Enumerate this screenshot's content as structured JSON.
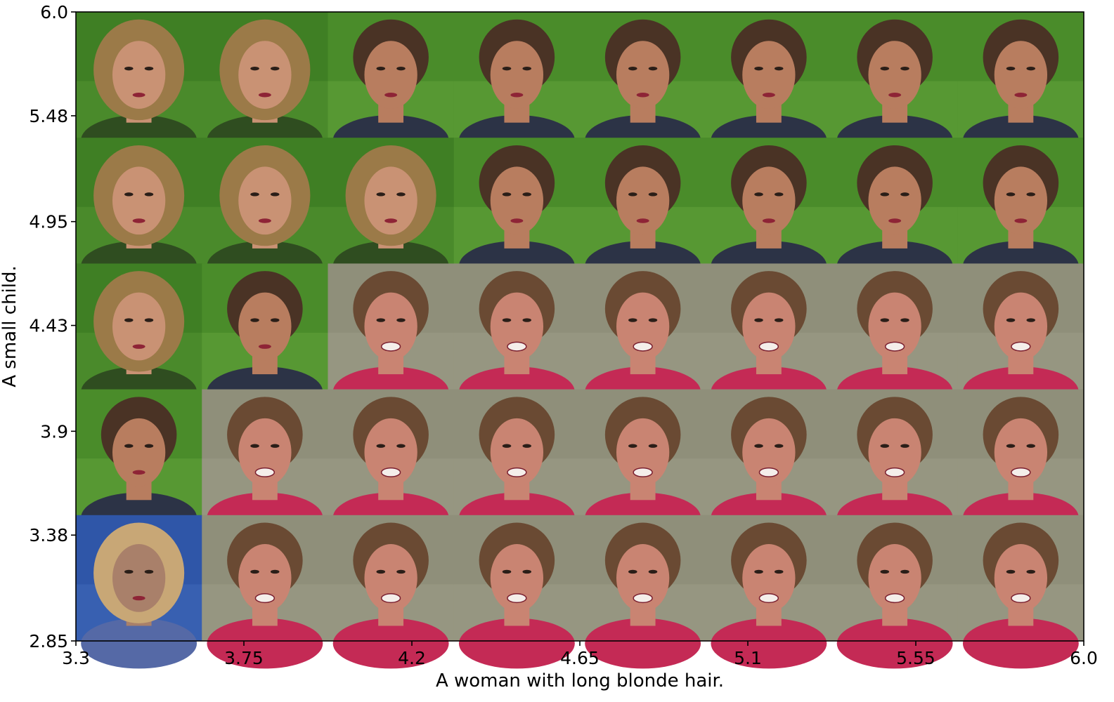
{
  "chart_data": {
    "type": "heatmap",
    "title": "",
    "xlabel": "A woman with long blonde hair.",
    "ylabel": "A small child.",
    "x_ticks": [
      "3.3",
      "3.75",
      "4.2",
      "4.65",
      "5.1",
      "5.55",
      "6.0"
    ],
    "y_ticks": [
      "6.0",
      "5.48",
      "4.95",
      "4.43",
      "3.9",
      "3.38",
      "2.85"
    ],
    "xlim": [
      3.3,
      6.0
    ],
    "ylim": [
      2.85,
      6.0
    ],
    "grid": false,
    "legend": "none",
    "columns": 8,
    "rows": 5,
    "cells": [
      [
        "woman-blonde",
        "woman-blonde",
        "woman",
        "woman",
        "woman",
        "woman",
        "woman",
        "woman"
      ],
      [
        "woman-blonde",
        "woman-blonde",
        "woman-blonde",
        "woman",
        "woman",
        "woman",
        "woman",
        "woman"
      ],
      [
        "woman-blonde",
        "woman",
        "child-smile",
        "child-smile",
        "child-smile",
        "child-smile",
        "child-smile",
        "child-smile"
      ],
      [
        "woman",
        "child-smile",
        "child-smile",
        "child-smile",
        "child-smile",
        "child-smile",
        "child-smile",
        "child-smile"
      ],
      [
        "blonde-child",
        "child-smile",
        "child-smile",
        "child-smile",
        "child-smile",
        "child-smile",
        "child-smile",
        "child-smile"
      ]
    ],
    "cell_colors": {
      "woman-blonde": {
        "bg": "#3f7f24",
        "bg2": "#5fa03a",
        "skin": "#c99274",
        "hair": "#9b7a48",
        "shirt": "#2f4d20"
      },
      "woman": {
        "bg": "#4a8c2a",
        "bg2": "#6fb044",
        "skin": "#b87d5f",
        "hair": "#4a3325",
        "shirt": "#2c3346"
      },
      "child-smile": {
        "bg": "#8f8f7a",
        "bg2": "#a3a38e",
        "skin": "#c98472",
        "hair": "#6a4a33",
        "shirt": "#c42a55"
      },
      "blonde-child": {
        "bg": "#2f56a8",
        "bg2": "#4a74c4",
        "skin": "#a9806a",
        "hair": "#c8a776",
        "shirt": "#5569a6"
      }
    }
  }
}
